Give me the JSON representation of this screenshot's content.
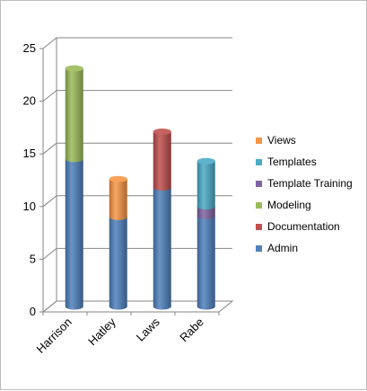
{
  "chart_data": {
    "type": "bar",
    "stacked": true,
    "style": "3d-cylinder",
    "title": "",
    "xlabel": "",
    "ylabel": "",
    "ylim": [
      0,
      25
    ],
    "yticks": [
      0,
      5,
      10,
      15,
      20,
      25
    ],
    "grid": true,
    "legend_position": "right",
    "categories": [
      "Harrison",
      "Hatley",
      "Laws",
      "Rabe"
    ],
    "series": [
      {
        "name": "Admin",
        "color": "#4f81bd",
        "values": [
          14,
          8.5,
          11.3,
          8.6
        ]
      },
      {
        "name": "Documentation",
        "color": "#c0504d",
        "values": [
          0,
          0,
          5.3,
          0
        ]
      },
      {
        "name": "Modeling",
        "color": "#9bbb59",
        "values": [
          8.6,
          0,
          0,
          0
        ]
      },
      {
        "name": "Template Training",
        "color": "#8064a2",
        "values": [
          0,
          0,
          0,
          0.9
        ]
      },
      {
        "name": "Templates",
        "color": "#4bacc6",
        "values": [
          0,
          0,
          0,
          4.3
        ]
      },
      {
        "name": "Views",
        "color": "#f79646",
        "values": [
          0,
          3.6,
          0,
          0
        ]
      }
    ],
    "legend_order": [
      "Views",
      "Templates",
      "Template Training",
      "Modeling",
      "Documentation",
      "Admin"
    ]
  }
}
